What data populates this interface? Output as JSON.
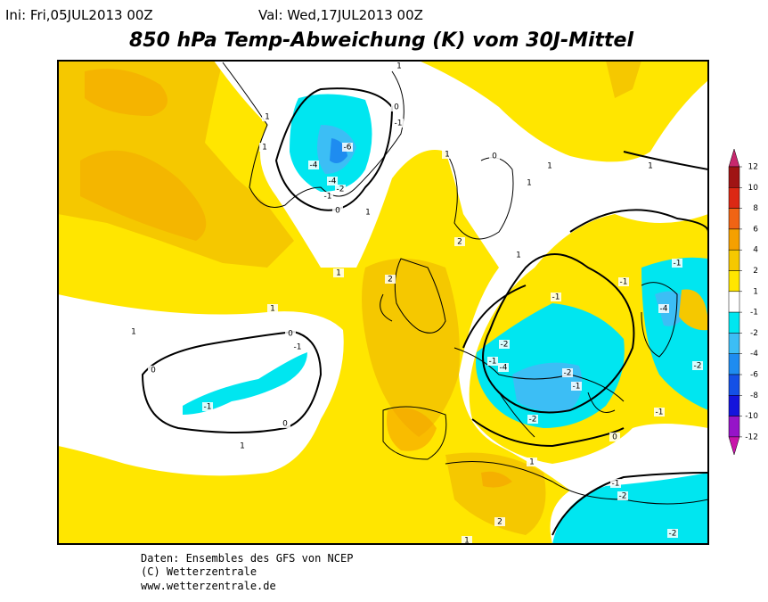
{
  "header": {
    "init": "Ini: Fri,05JUL2013 00Z",
    "valid": "Val: Wed,17JUL2013 00Z"
  },
  "title": "850 hPa Temp-Abweichung (K) vom 30J-Mittel",
  "colorbar": {
    "levels": [
      12,
      10,
      8,
      6,
      4,
      2,
      1,
      -1,
      -2,
      -4,
      -6,
      -8,
      -10,
      -12
    ],
    "colors": [
      "#c8286e",
      "#a01414",
      "#dc2814",
      "#f06414",
      "#f5a000",
      "#f5c800",
      "#ffe600",
      "#ffffff",
      "#00e6f0",
      "#3cbef5",
      "#1e8cf0",
      "#1450e6",
      "#1414dc",
      "#9614c8",
      "#c814aa"
    ]
  },
  "contour_labels": [
    1,
    1,
    0,
    -1,
    -6,
    -4,
    -4,
    -2,
    -1,
    0,
    1,
    1,
    0,
    1,
    1,
    1,
    1,
    1,
    2,
    1,
    1,
    0,
    -1,
    0,
    -1,
    0,
    1,
    2,
    1,
    -1,
    -2,
    -1,
    -4,
    -2,
    -2,
    -1,
    -4,
    -1,
    -1,
    -2,
    -1,
    0,
    1,
    -2,
    -1,
    -2,
    2,
    1
  ],
  "footer": [
    "Daten: Ensembles des GFS von NCEP",
    "(C) Wetterzentrale",
    "www.wetterzentrale.de"
  ]
}
